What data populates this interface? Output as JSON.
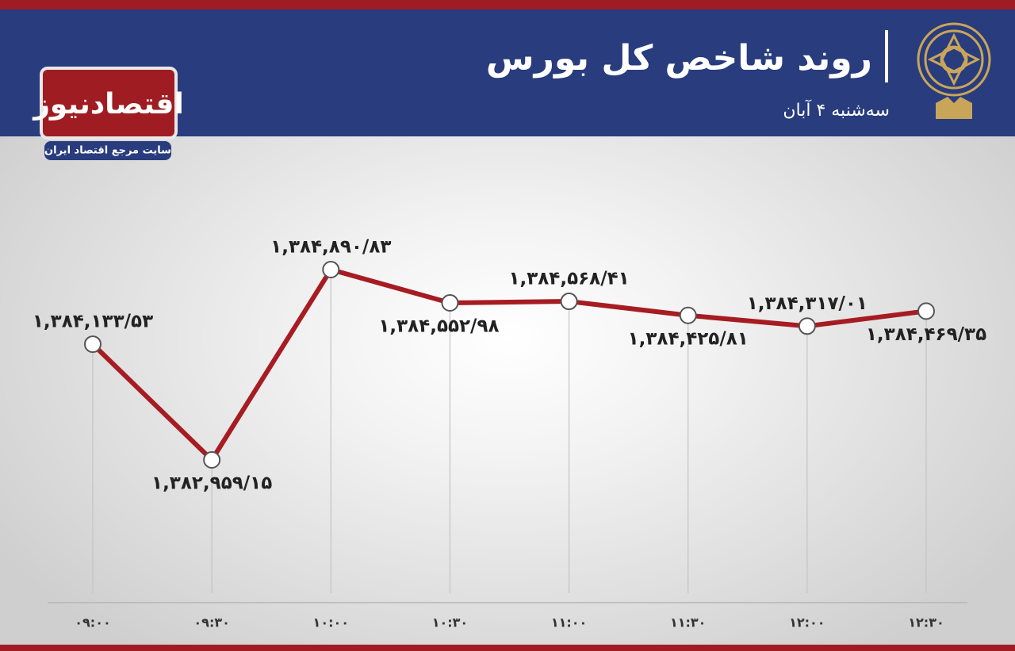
{
  "chart_data": {
    "type": "line",
    "title": "روند شاخص کل بورس",
    "subtitle": "سه‌شنبه ۴ آبان",
    "categories": [
      "۰۹:۰۰",
      "۰۹:۳۰",
      "۱۰:۰۰",
      "۱۰:۳۰",
      "۱۱:۰۰",
      "۱۱:۳۰",
      "۱۲:۰۰",
      "۱۲:۳۰"
    ],
    "values": [
      1384133.53,
      1382959.15,
      1384890.83,
      1384552.98,
      1384568.41,
      1384425.81,
      1384317.01,
      1384469.35
    ],
    "value_labels": [
      "۱,۳۸۴,۱۳۳/۵۳",
      "۱,۳۸۲,۹۵۹/۱۵",
      "۱,۳۸۴,۸۹۰/۸۳",
      "۱,۳۸۴,۵۵۲/۹۸",
      "۱,۳۸۴,۵۶۸/۴۱",
      "۱,۳۸۴,۴۲۵/۸۱",
      "۱,۳۸۴,۳۱۷/۰۱",
      "۱,۳۸۴,۴۶۹/۳۵"
    ],
    "color": "#a61c22"
  },
  "brand": {
    "name": "اقتصادنیوز",
    "tagline": "سایت مرجع اقتصاد ایران"
  }
}
